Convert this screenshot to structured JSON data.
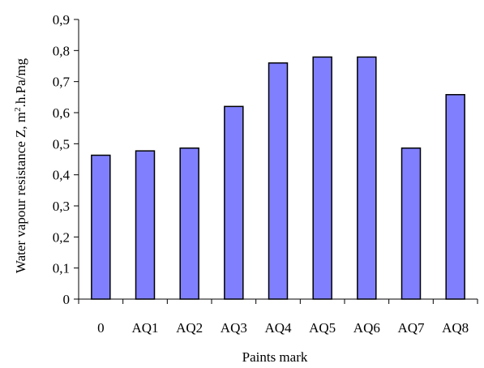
{
  "chart_data": {
    "type": "bar",
    "title": "",
    "xlabel": "Paints mark",
    "ylabel_prefix": "Water  vapour resistance Z, m",
    "ylabel_sup": "2",
    "ylabel_suffix": ".h.Pa/mg",
    "categories": [
      "0",
      "AQ1",
      "AQ2",
      "AQ3",
      "AQ4",
      "AQ5",
      "AQ6",
      "AQ7",
      "AQ8"
    ],
    "values": [
      0.463,
      0.477,
      0.486,
      0.62,
      0.76,
      0.779,
      0.779,
      0.486,
      0.658
    ],
    "ylim": [
      0,
      0.9
    ],
    "yticks": [
      0,
      0.1,
      0.2,
      0.3,
      0.4,
      0.5,
      0.6,
      0.7,
      0.8,
      0.9
    ],
    "ytick_labels": [
      "0",
      "0,1",
      "0,2",
      "0,3",
      "0,4",
      "0,5",
      "0,6",
      "0,7",
      "0,8",
      "0,9"
    ],
    "grid": false,
    "legend": "none",
    "colors": {
      "bar_fill": "#8080ff",
      "bar_stroke": "#000000",
      "axis": "#000000"
    }
  }
}
